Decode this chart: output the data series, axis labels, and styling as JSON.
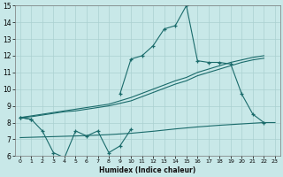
{
  "xlabel": "Humidex (Indice chaleur)",
  "ylabel": "",
  "xlim": [
    -0.5,
    23.5
  ],
  "ylim": [
    6,
    15
  ],
  "xticks": [
    0,
    1,
    2,
    3,
    4,
    5,
    6,
    7,
    8,
    9,
    10,
    11,
    12,
    13,
    14,
    15,
    16,
    17,
    18,
    19,
    20,
    21,
    22,
    23
  ],
  "yticks": [
    6,
    7,
    8,
    9,
    10,
    11,
    12,
    13,
    14,
    15
  ],
  "background_color": "#c8e8e8",
  "grid_color": "#aad0d0",
  "line_color": "#1a6b6b",
  "line1_y": [
    8.3,
    8.2,
    7.5,
    6.2,
    5.9,
    7.5,
    7.2,
    7.5,
    6.2,
    6.6,
    7.6,
    null,
    null,
    null,
    null,
    null,
    null,
    null,
    null,
    null,
    null,
    null,
    null,
    null
  ],
  "line2_y": [
    8.3,
    8.2,
    null,
    null,
    null,
    null,
    null,
    null,
    null,
    9.7,
    11.8,
    12.0,
    12.6,
    13.6,
    13.8,
    15.0,
    11.7,
    11.6,
    11.6,
    11.5,
    9.7,
    8.5,
    8.0,
    null
  ],
  "line3_y": [
    8.3,
    8.35,
    8.45,
    8.55,
    8.65,
    8.7,
    8.8,
    8.9,
    9.0,
    9.15,
    9.3,
    9.55,
    9.8,
    10.05,
    10.3,
    10.5,
    10.8,
    11.0,
    11.2,
    11.4,
    11.6,
    11.75,
    11.85,
    null
  ],
  "line4_y": [
    8.3,
    8.4,
    8.5,
    8.6,
    8.7,
    8.8,
    8.9,
    9.0,
    9.1,
    9.3,
    9.5,
    9.75,
    10.0,
    10.25,
    10.5,
    10.7,
    11.0,
    11.2,
    11.4,
    11.6,
    11.75,
    11.9,
    12.0,
    null
  ],
  "line5_y": [
    7.1,
    7.12,
    7.14,
    7.16,
    7.18,
    7.2,
    7.22,
    7.25,
    7.28,
    7.32,
    7.36,
    7.42,
    7.48,
    7.55,
    7.62,
    7.68,
    7.74,
    7.79,
    7.84,
    7.88,
    7.92,
    7.96,
    8.0,
    8.0
  ]
}
